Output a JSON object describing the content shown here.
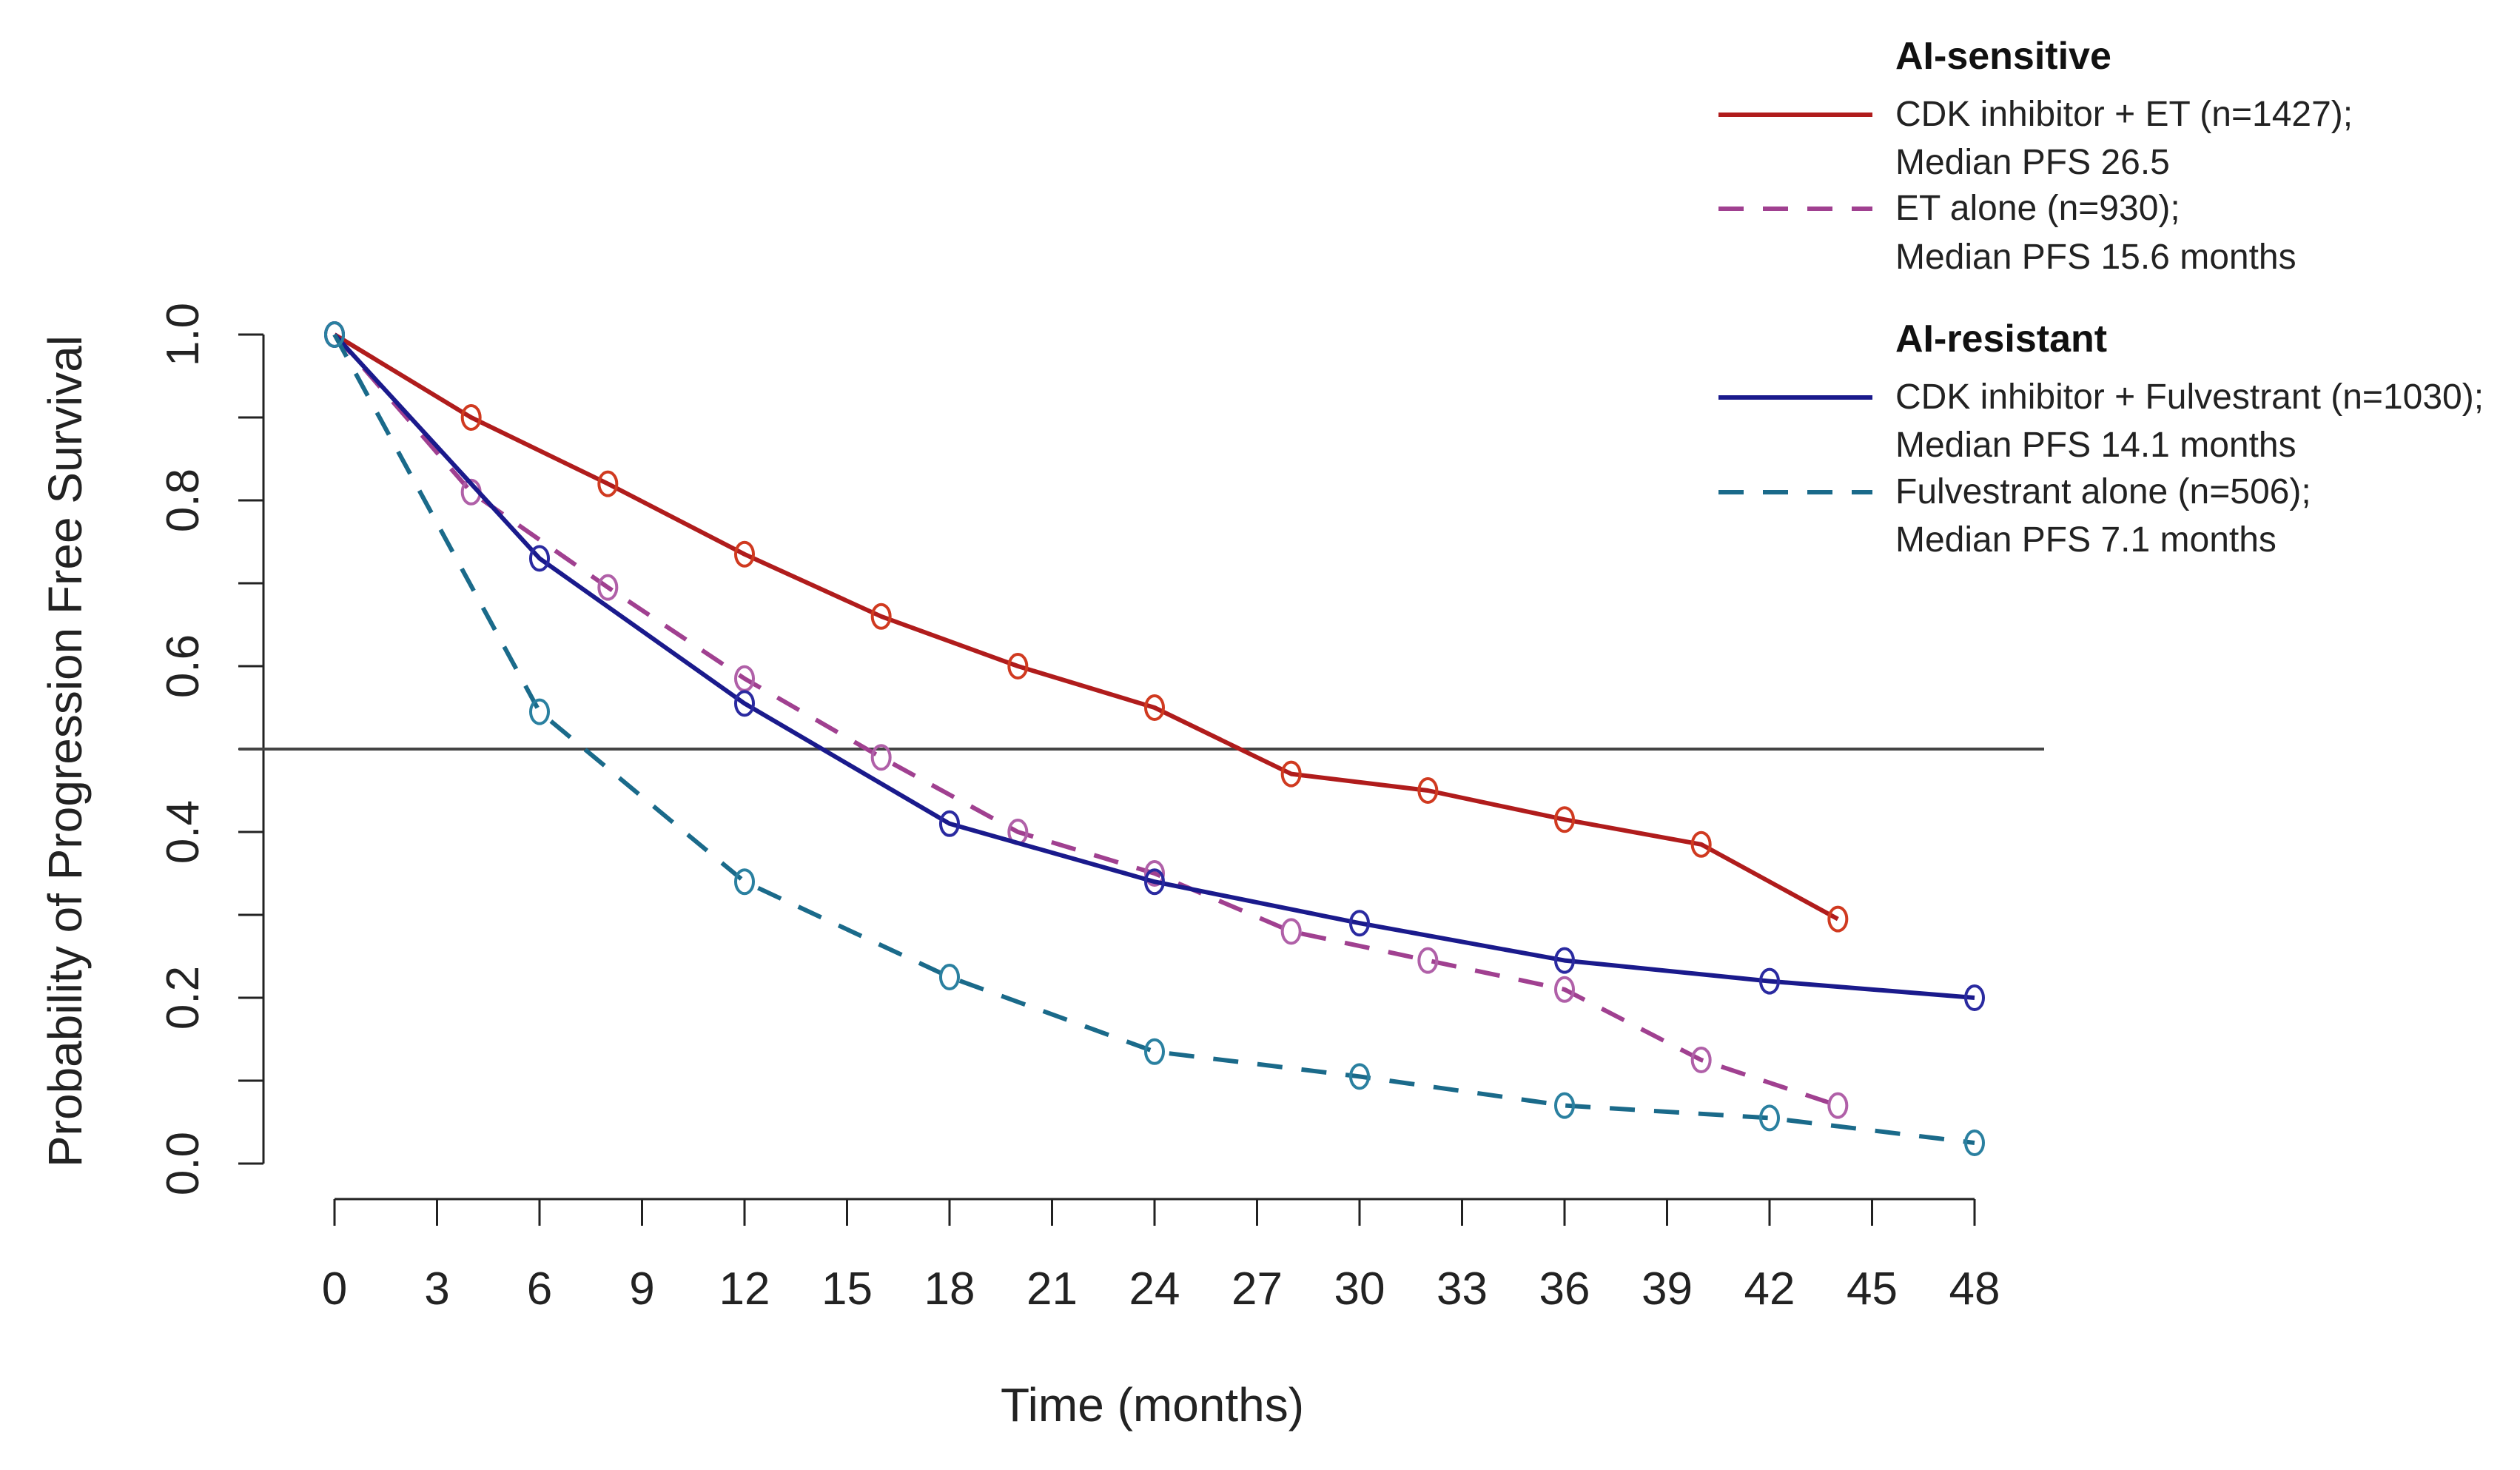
{
  "chart_data": {
    "type": "line",
    "title": "",
    "xlabel": "Time (months)",
    "ylabel": "Probability of Progression Free Survival",
    "xlim": [
      0,
      48
    ],
    "ylim": [
      0,
      1
    ],
    "x_ticks": [
      0,
      3,
      6,
      9,
      12,
      15,
      18,
      21,
      24,
      27,
      30,
      33,
      36,
      39,
      42,
      45,
      48
    ],
    "y_ticks": [
      "0.0",
      "0.2",
      "0.4",
      "0.6",
      "0.8",
      "1.0"
    ],
    "y_minor_ticks": [
      0.1,
      0.3,
      0.5,
      0.7,
      0.9
    ],
    "reference_line_y": 0.5,
    "grid": false,
    "legend_position": "top-right",
    "legend_groups": [
      {
        "title": "AI-sensitive",
        "entries": [
          0,
          1
        ]
      },
      {
        "title": "AI-resistant",
        "entries": [
          2,
          3
        ]
      }
    ],
    "series": [
      {
        "name": "CDK inhibitor + ET (n=1427);",
        "name_line2": "Median PFS 26.5",
        "color": "#b01c1c",
        "dash": false,
        "marker_color": "#d03a20",
        "x": [
          0,
          4,
          8,
          12,
          16,
          20,
          24,
          28,
          32,
          36,
          40,
          44
        ],
        "y": [
          1.0,
          0.9,
          0.82,
          0.735,
          0.66,
          0.6,
          0.55,
          0.47,
          0.45,
          0.415,
          0.385,
          0.295
        ]
      },
      {
        "name": "ET alone (n=930);",
        "name_line2": "Median PFS 15.6 months",
        "color": "#a04090",
        "dash": true,
        "marker_color": "#b060a8",
        "x": [
          0,
          4,
          8,
          12,
          16,
          20,
          24,
          28,
          32,
          36,
          40,
          44
        ],
        "y": [
          1.0,
          0.81,
          0.695,
          0.585,
          0.49,
          0.4,
          0.35,
          0.28,
          0.245,
          0.21,
          0.125,
          0.07
        ]
      },
      {
        "name": "CDK inhibitor + Fulvestrant (n=1030);",
        "name_line2": "Median PFS 14.1 months",
        "color": "#1a1a8c",
        "dash": false,
        "marker_color": "#2a2aa0",
        "x": [
          0,
          6,
          12,
          18,
          24,
          30,
          36,
          42,
          48
        ],
        "y": [
          1.0,
          0.73,
          0.555,
          0.41,
          0.34,
          0.29,
          0.245,
          0.22,
          0.2
        ]
      },
      {
        "name": "Fulvestrant alone (n=506);",
        "name_line2": "Median PFS 7.1 months",
        "color": "#1a6a8a",
        "dash": true,
        "marker_color": "#2a80a0",
        "x": [
          0,
          6,
          12,
          18,
          24,
          30,
          36,
          42,
          48
        ],
        "y": [
          1.0,
          0.545,
          0.34,
          0.225,
          0.135,
          0.105,
          0.07,
          0.055,
          0.025
        ]
      }
    ]
  }
}
